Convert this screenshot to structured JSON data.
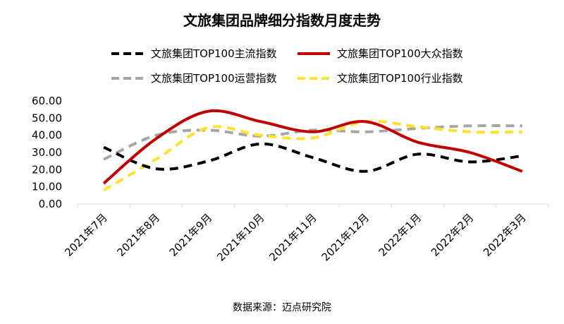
{
  "chart_data": {
    "type": "line",
    "title": "文旅集团品牌细分指数月度走势",
    "categories": [
      "2021年7月",
      "2021年8月",
      "2021年9月",
      "2021年10月",
      "2021年11月",
      "2021年12月",
      "2022年1月",
      "2022年2月",
      "2022年3月"
    ],
    "series": [
      {
        "name": "文旅集团TOP100主流指数",
        "values": [
          33,
          20.5,
          25,
          35,
          27,
          19,
          29,
          24.5,
          28
        ],
        "color": "#000000",
        "dash": "dashed"
      },
      {
        "name": "文旅集团TOP100大众指数",
        "values": [
          12,
          38,
          54,
          48,
          42,
          48,
          36,
          30,
          19
        ],
        "color": "#c00000",
        "dash": "solid"
      },
      {
        "name": "文旅集团TOP100运营指数",
        "values": [
          26,
          40,
          43,
          39.5,
          43,
          42,
          44,
          45.5,
          45.5
        ],
        "color": "#a6a6a6",
        "dash": "dashed"
      },
      {
        "name": "文旅集团TOP100行业指数",
        "values": [
          8,
          26,
          44.5,
          40,
          38.5,
          48,
          45,
          42,
          42
        ],
        "color": "#ffe12e",
        "dash": "dashed"
      }
    ],
    "ylim": [
      0,
      60
    ],
    "yticks": [
      "0.00",
      "10.00",
      "20.00",
      "30.00",
      "40.00",
      "50.00",
      "60.00"
    ],
    "grid": false,
    "legend_position": "top"
  },
  "source_text": "数据来源：迈点研究院"
}
